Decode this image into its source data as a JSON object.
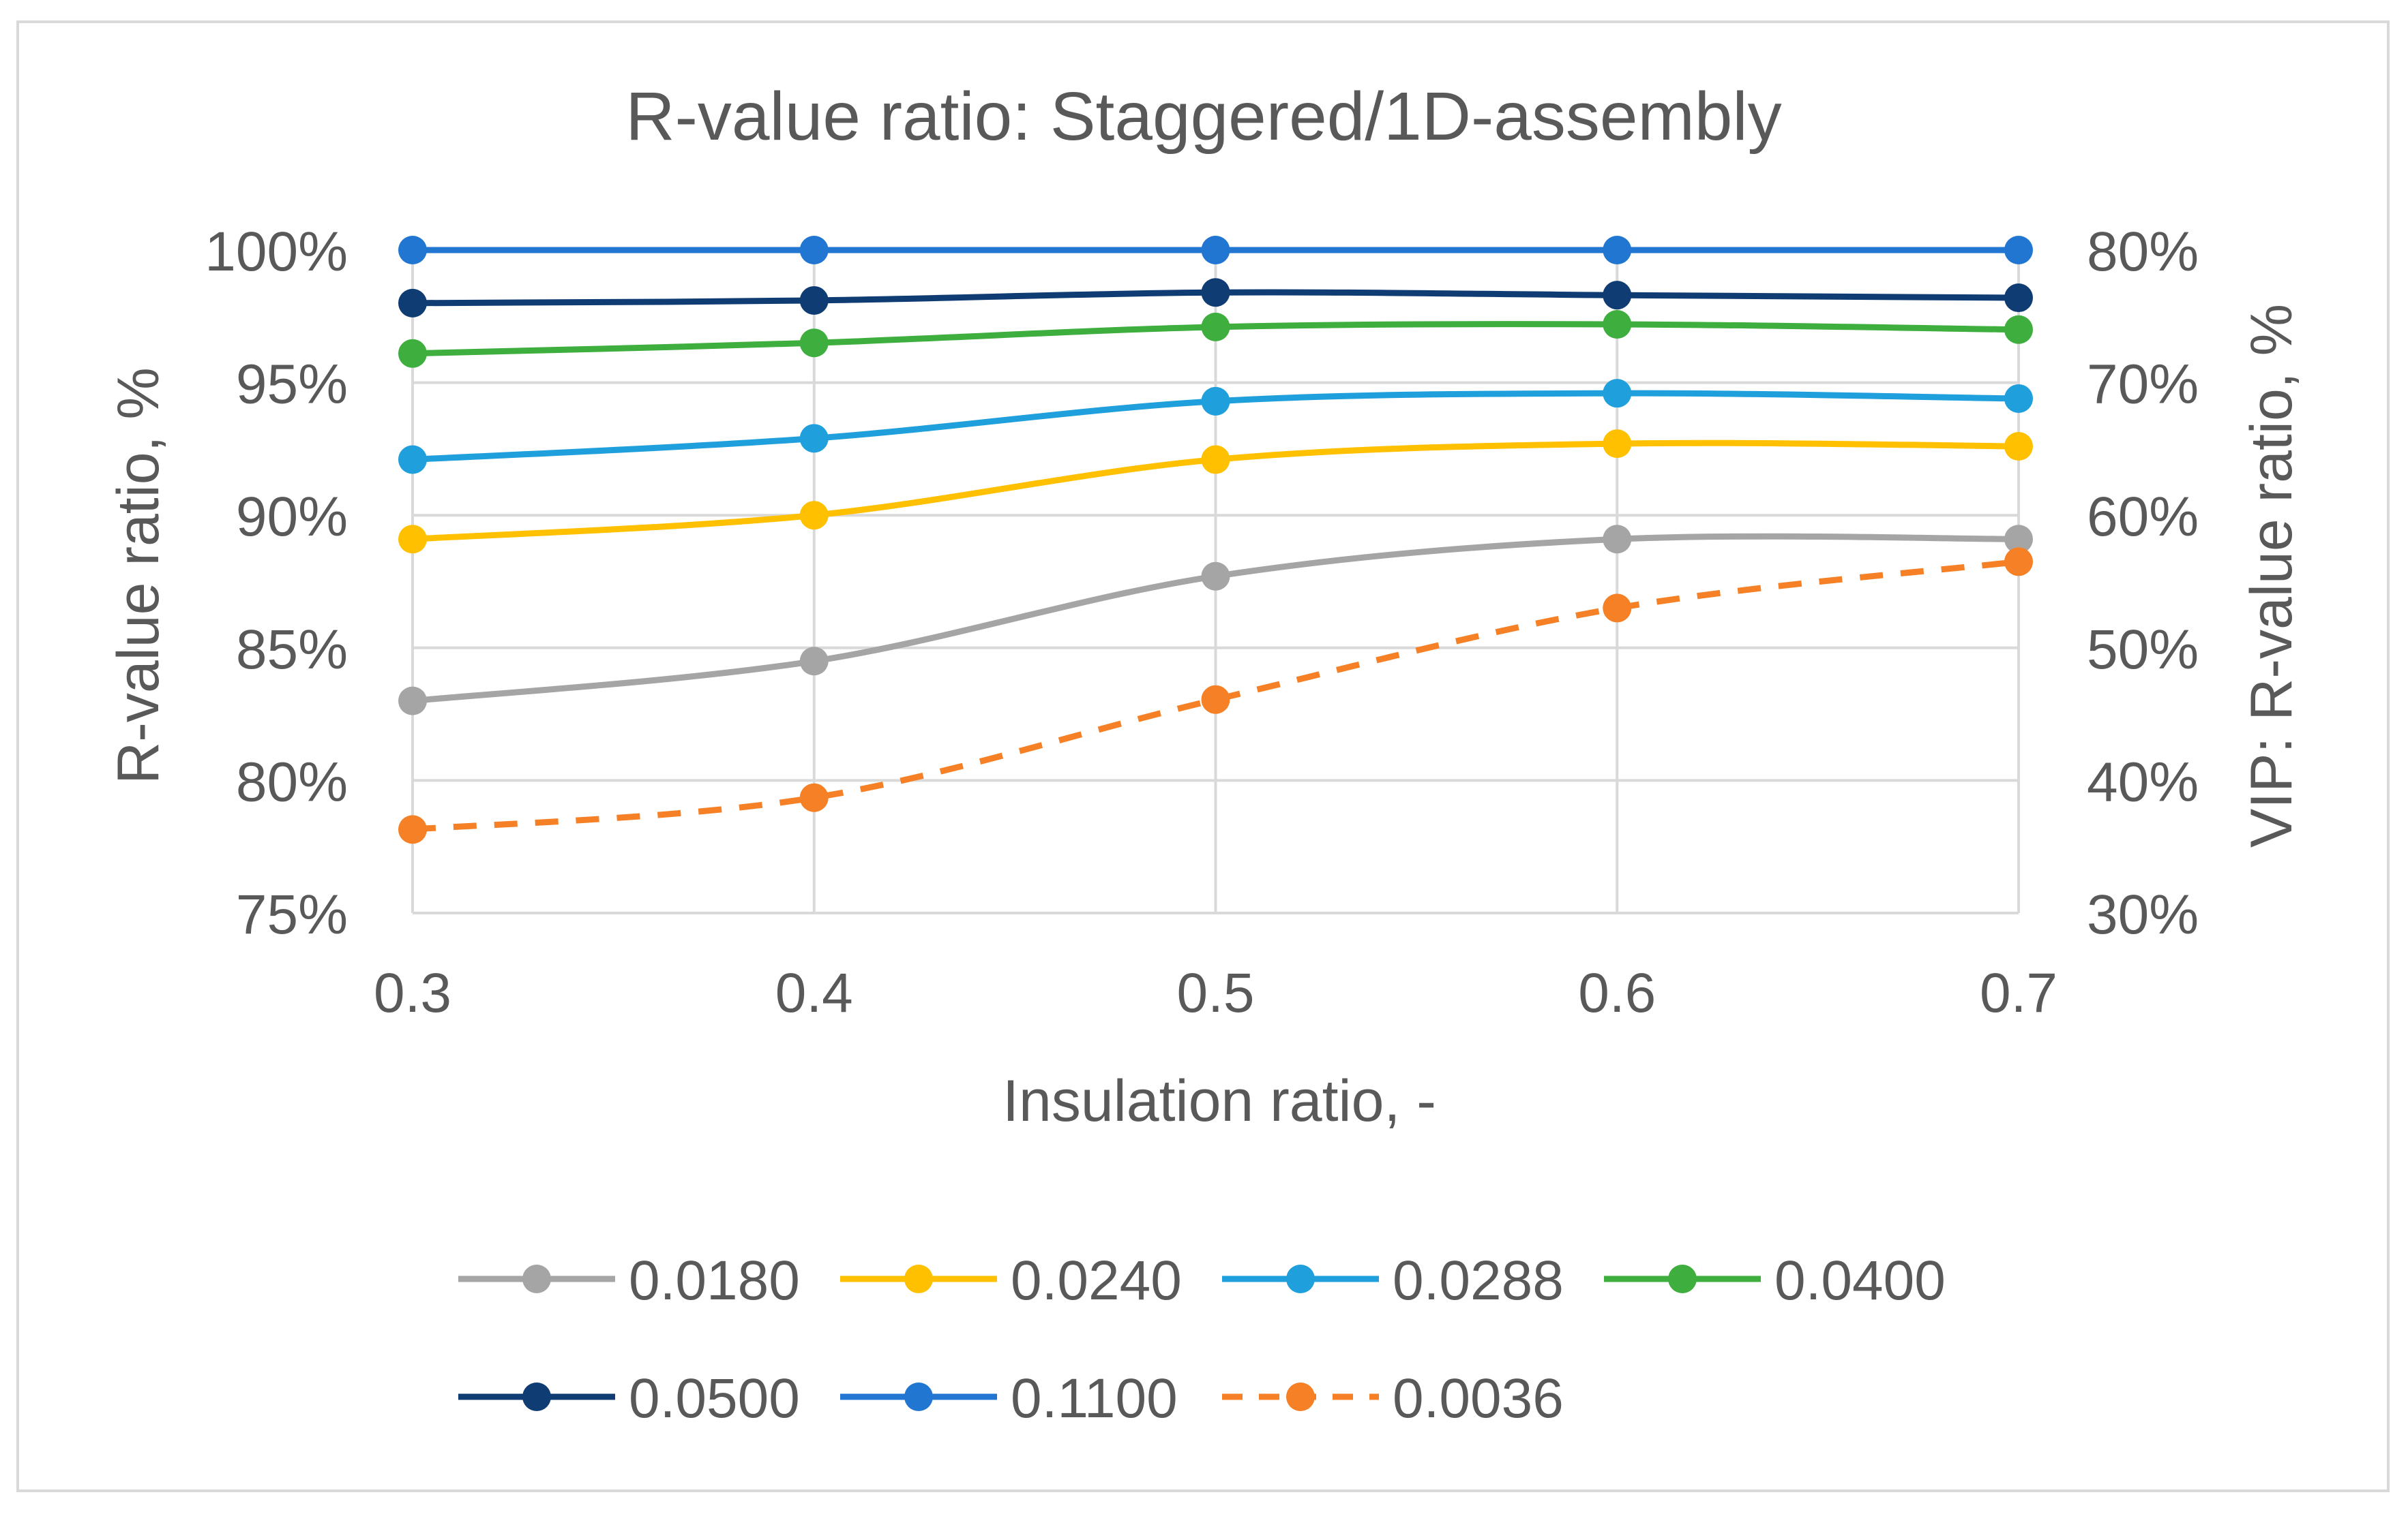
{
  "chart_data": {
    "type": "line",
    "title": "R-value ratio: Staggered/1D-assembly",
    "xlabel": "Insulation ratio, -",
    "ylabel": "R-value ratio, %",
    "y2label": "VIP: R-value ratio, %",
    "x": [
      0.3,
      0.4,
      0.5,
      0.6,
      0.7
    ],
    "x_tick_labels": [
      "0.3",
      "0.4",
      "0.5",
      "0.6",
      "0.7"
    ],
    "ylim": [
      75,
      100
    ],
    "y_ticks": [
      75,
      80,
      85,
      90,
      95,
      100
    ],
    "y_tick_labels": [
      "75%",
      "80%",
      "85%",
      "90%",
      "95%",
      "100%"
    ],
    "y2lim": [
      30,
      80
    ],
    "y2_ticks": [
      30,
      40,
      50,
      60,
      70,
      80
    ],
    "y2_tick_labels": [
      "30%",
      "40%",
      "50%",
      "60%",
      "70%",
      "80%"
    ],
    "grid": true,
    "legend_position": "bottom",
    "series": [
      {
        "name": "0.0180",
        "axis": "left",
        "color": "#a5a5a5",
        "dashed": false,
        "values": [
          83.0,
          84.5,
          87.7,
          89.1,
          89.1
        ]
      },
      {
        "name": "0.0240",
        "axis": "left",
        "color": "#ffc000",
        "dashed": false,
        "values": [
          89.1,
          90.0,
          92.1,
          92.7,
          92.6
        ]
      },
      {
        "name": "0.0288",
        "axis": "left",
        "color": "#1f9fdb",
        "dashed": false,
        "values": [
          92.1,
          92.9,
          94.3,
          94.6,
          94.4
        ]
      },
      {
        "name": "0.0400",
        "axis": "left",
        "color": "#3eae3e",
        "dashed": false,
        "values": [
          96.1,
          96.5,
          97.1,
          97.2,
          97.0
        ]
      },
      {
        "name": "0.0500",
        "axis": "left",
        "color": "#0f3c73",
        "dashed": false,
        "values": [
          98.0,
          98.1,
          98.4,
          98.3,
          98.2
        ]
      },
      {
        "name": "0.1100",
        "axis": "left",
        "color": "#2176d2",
        "dashed": false,
        "values": [
          100.0,
          100.0,
          100.0,
          100.0,
          100.0
        ]
      },
      {
        "name": "0.0036",
        "axis": "right",
        "color": "#f58025",
        "dashed": true,
        "values": [
          36.3,
          38.7,
          46.1,
          53.0,
          56.5
        ]
      }
    ]
  }
}
